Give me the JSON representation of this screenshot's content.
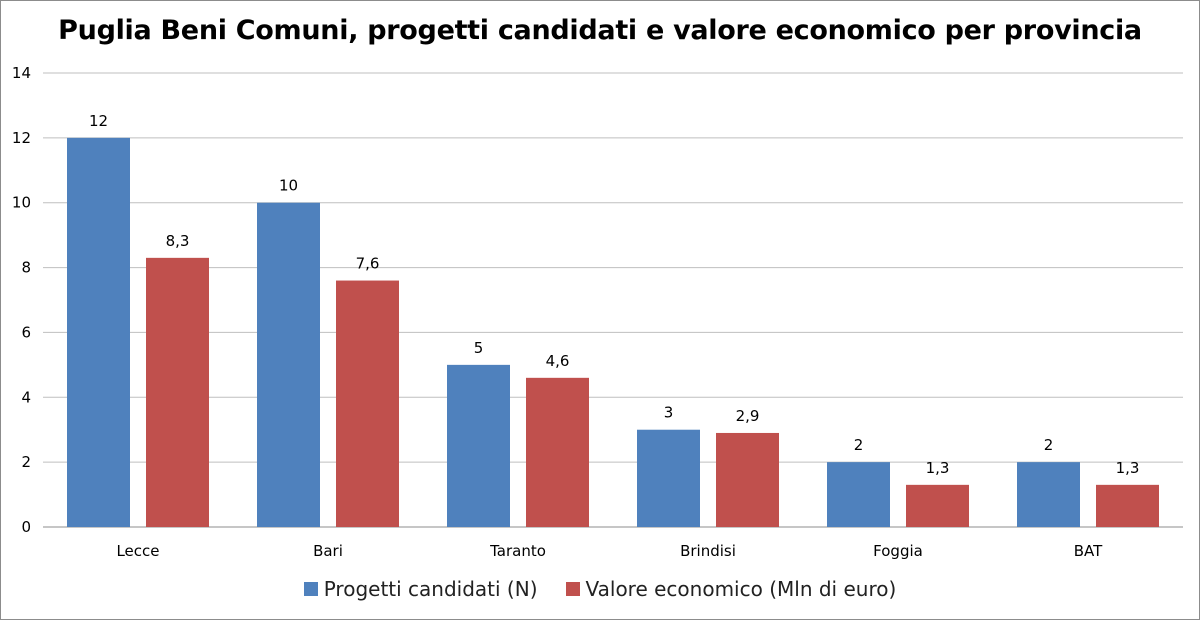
{
  "chart_data": {
    "type": "bar",
    "title": "Puglia Beni Comuni, progetti candidati e valore economico per provincia",
    "xlabel": "",
    "ylabel": "",
    "categories": [
      "Lecce",
      "Bari",
      "Taranto",
      "Brindisi",
      "Foggia",
      "BAT"
    ],
    "series": [
      {
        "name": "Progetti candidati (N)",
        "values": [
          12,
          10,
          5,
          3,
          2,
          2
        ],
        "labels": [
          "12",
          "10",
          "5",
          "3",
          "2",
          "2"
        ],
        "color": "#4f81bd"
      },
      {
        "name": "Valore economico (Mln di euro)",
        "values": [
          8.3,
          7.6,
          4.6,
          2.9,
          1.3,
          1.3
        ],
        "labels": [
          "8,3",
          "7,6",
          "4,6",
          "2,9",
          "1,3",
          "1,3"
        ],
        "color": "#c0504d"
      }
    ],
    "ylim": [
      0,
      14
    ],
    "yticks": [
      0,
      2,
      4,
      6,
      8,
      10,
      12,
      14
    ],
    "grid": true,
    "legend_position": "bottom"
  }
}
